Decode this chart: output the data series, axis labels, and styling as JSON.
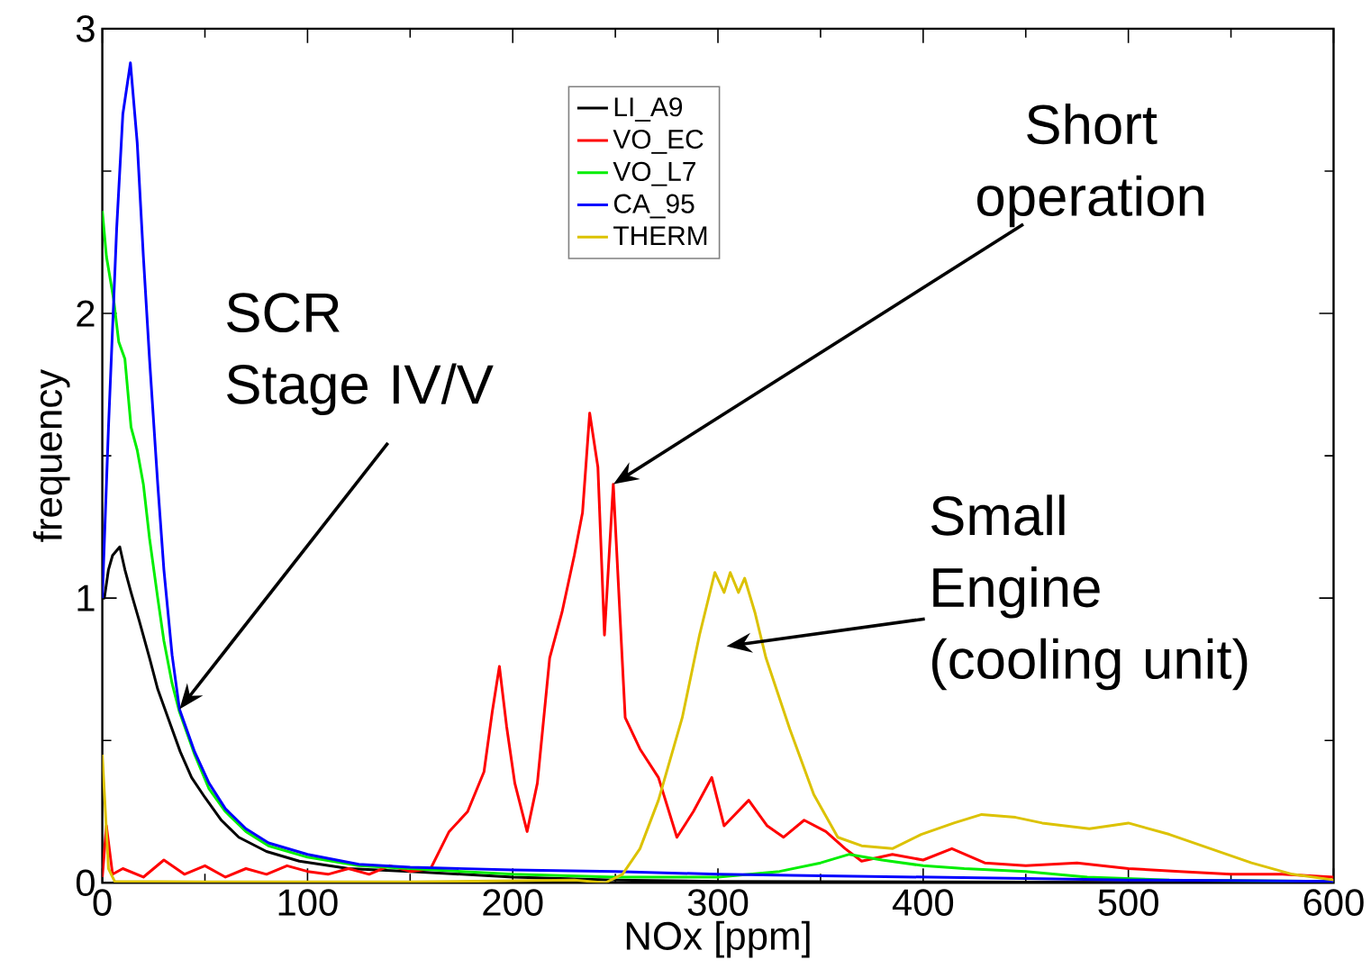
{
  "chart_data": {
    "type": "line",
    "xlabel": "NOx [ppm]",
    "ylabel": "frequency",
    "xlim": [
      0,
      600
    ],
    "ylim": [
      0,
      3
    ],
    "xticks": [
      0,
      {
        "value": 50,
        "label": null
      },
      100,
      {
        "value": 150,
        "label": null
      },
      200,
      {
        "value": 250,
        "label": null
      },
      300,
      {
        "value": 350,
        "label": null
      },
      400,
      {
        "value": 450,
        "label": null
      },
      500,
      {
        "value": 550,
        "label": null
      },
      600
    ],
    "yticks": [
      0,
      {
        "value": 0.5,
        "label": null
      },
      1,
      {
        "value": 1.5,
        "label": null
      },
      2,
      {
        "value": 2.5,
        "label": null
      },
      3
    ],
    "grid": false,
    "legend": "top",
    "marker": "none",
    "line_style": "solid",
    "series": [
      {
        "name": "LI_A9",
        "color": "#000000",
        "x": [
          0,
          1,
          3,
          5,
          8.5,
          11,
          14,
          18,
          23,
          27,
          32,
          38,
          43.5,
          50,
          58,
          66.5,
          80,
          96,
          120,
          150,
          200,
          250,
          300,
          400,
          500,
          600
        ],
        "values": [
          1.0,
          1.0,
          1.1,
          1.15,
          1.18,
          1.1,
          1.02,
          0.92,
          0.79,
          0.68,
          0.58,
          0.46,
          0.37,
          0.3,
          0.22,
          0.16,
          0.11,
          0.076,
          0.05,
          0.04,
          0.02,
          0.01,
          0.005,
          0.003,
          0.002,
          0.001
        ]
      },
      {
        "name": "VO_EC",
        "color": "#ff0000",
        "x": [
          0,
          2,
          5,
          10,
          20,
          30,
          40,
          50,
          60,
          70,
          80,
          90,
          100,
          110,
          120,
          130,
          140,
          150,
          160,
          169,
          178,
          186,
          190,
          193.5,
          197,
          201,
          207,
          212,
          218,
          224,
          230,
          234,
          237.5,
          241.5,
          244.7,
          249,
          254.8,
          262,
          271,
          280,
          288,
          297,
          303,
          315,
          324,
          332,
          342,
          352.6,
          362,
          370,
          385,
          400,
          414,
          430,
          450,
          475,
          500,
          525,
          550,
          575,
          600
        ],
        "values": [
          0.02,
          0.2,
          0.03,
          0.05,
          0.02,
          0.08,
          0.03,
          0.06,
          0.02,
          0.05,
          0.03,
          0.06,
          0.04,
          0.03,
          0.05,
          0.03,
          0.06,
          0.04,
          0.05,
          0.18,
          0.25,
          0.39,
          0.6,
          0.76,
          0.55,
          0.35,
          0.18,
          0.35,
          0.79,
          0.95,
          1.15,
          1.3,
          1.65,
          1.46,
          0.87,
          1.4,
          0.58,
          0.47,
          0.37,
          0.16,
          0.25,
          0.37,
          0.2,
          0.29,
          0.2,
          0.16,
          0.22,
          0.18,
          0.12,
          0.076,
          0.1,
          0.08,
          0.12,
          0.07,
          0.06,
          0.07,
          0.05,
          0.04,
          0.03,
          0.03,
          0.02
        ]
      },
      {
        "name": "VO_L7",
        "color": "#00ee00",
        "x": [
          0,
          2,
          5.5,
          8,
          11,
          14,
          17,
          20,
          23,
          27,
          30,
          34,
          37.6,
          45,
          52,
          60,
          70,
          81,
          100,
          125,
          150,
          200,
          250,
          300,
          330,
          350,
          364,
          380,
          400,
          420,
          450,
          480,
          520,
          600
        ],
        "values": [
          2.36,
          2.2,
          2.05,
          1.9,
          1.84,
          1.6,
          1.52,
          1.4,
          1.21,
          1.0,
          0.85,
          0.7,
          0.6,
          0.45,
          0.33,
          0.25,
          0.18,
          0.13,
          0.09,
          0.06,
          0.05,
          0.03,
          0.02,
          0.02,
          0.04,
          0.07,
          0.1,
          0.08,
          0.06,
          0.05,
          0.04,
          0.02,
          0.01,
          0.005
        ]
      },
      {
        "name": "CA_95",
        "color": "#0000ff",
        "x": [
          0,
          3,
          7,
          10,
          13.7,
          17,
          20,
          23,
          27,
          30,
          34,
          37.6,
          45,
          52,
          60,
          70,
          81,
          100,
          125,
          150,
          200,
          250,
          300,
          350,
          400,
          450,
          500,
          550,
          600
        ],
        "values": [
          1.0,
          1.6,
          2.3,
          2.7,
          2.88,
          2.6,
          2.2,
          1.84,
          1.4,
          1.1,
          0.8,
          0.61,
          0.46,
          0.35,
          0.26,
          0.19,
          0.14,
          0.1,
          0.065,
          0.055,
          0.045,
          0.04,
          0.03,
          0.025,
          0.02,
          0.015,
          0.01,
          0.008,
          0.005
        ]
      },
      {
        "name": "THERM",
        "color": "#dcc200",
        "x": [
          0,
          3,
          6,
          50,
          150,
          230,
          245,
          253.5,
          262,
          271,
          282.6,
          291,
          298.5,
          303,
          306,
          310,
          313,
          318,
          323.4,
          335,
          346.7,
          358.4,
          370,
          385,
          399,
          415,
          428.5,
          445,
          458,
          481,
          500,
          520,
          540,
          560,
          580,
          590,
          600
        ],
        "values": [
          0.45,
          0.05,
          0.005,
          0.003,
          0.003,
          0.01,
          0.0,
          0.03,
          0.12,
          0.29,
          0.58,
          0.87,
          1.09,
          1.02,
          1.09,
          1.02,
          1.07,
          0.95,
          0.79,
          0.54,
          0.31,
          0.16,
          0.13,
          0.12,
          0.17,
          0.21,
          0.24,
          0.23,
          0.21,
          0.19,
          0.21,
          0.17,
          0.12,
          0.07,
          0.03,
          0.02,
          0.01
        ]
      }
    ],
    "annotations": [
      {
        "text": "SCR Stage IV/V",
        "x": 37.6,
        "y": 0.61
      },
      {
        "text": "Short operation",
        "x": 249,
        "y": 1.4
      },
      "Small Engine (cooling unit)"
    ]
  }
}
